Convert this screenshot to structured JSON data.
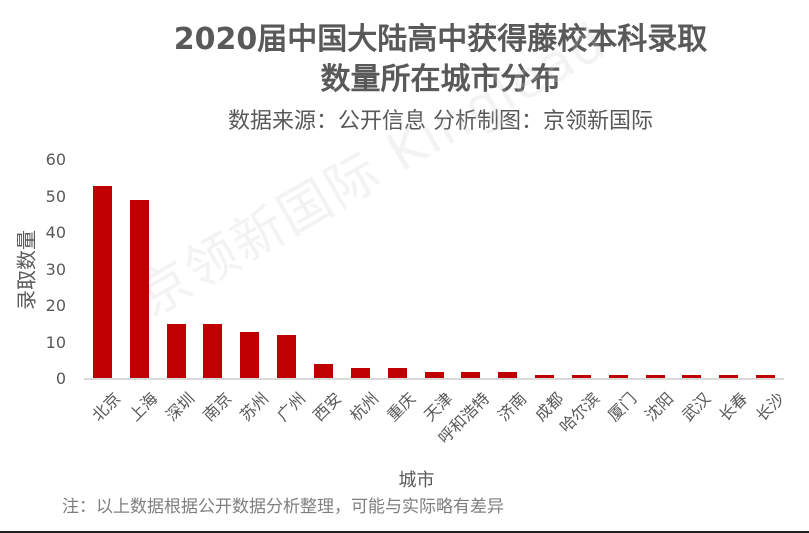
{
  "title_line1": "2020届中国大陆高中获得藤校本科录取",
  "title_line2": "数量所在城市分布",
  "subtitle": "数据来源：公开信息 分析制图：京领新国际",
  "watermark": "京领新国际 Kinglead",
  "note": "注：以上数据根据公开数据分析整理，可能与实际略有差异",
  "colors": {
    "bar": "#C00000",
    "text": "#595959",
    "axis": "#D9D9D9"
  },
  "chart_data": {
    "type": "bar",
    "title": "2020届中国大陆高中获得藤校本科录取数量所在城市分布",
    "subtitle": "数据来源：公开信息 分析制图：京领新国际",
    "xlabel": "城市",
    "ylabel": "录取数量",
    "ylim": [
      0,
      60
    ],
    "yticks": [
      0,
      10,
      20,
      30,
      40,
      50,
      60
    ],
    "grid": false,
    "legend": null,
    "categories": [
      "北京",
      "上海",
      "深圳",
      "南京",
      "苏州",
      "广州",
      "西安",
      "杭州",
      "重庆",
      "天津",
      "呼和浩特",
      "济南",
      "成都",
      "哈尔滨",
      "厦门",
      "沈阳",
      "武汉",
      "长春",
      "长沙"
    ],
    "values": [
      53,
      49,
      15,
      15,
      13,
      12,
      4,
      3,
      3,
      2,
      2,
      2,
      1,
      1,
      1,
      1,
      1,
      1,
      1
    ]
  }
}
